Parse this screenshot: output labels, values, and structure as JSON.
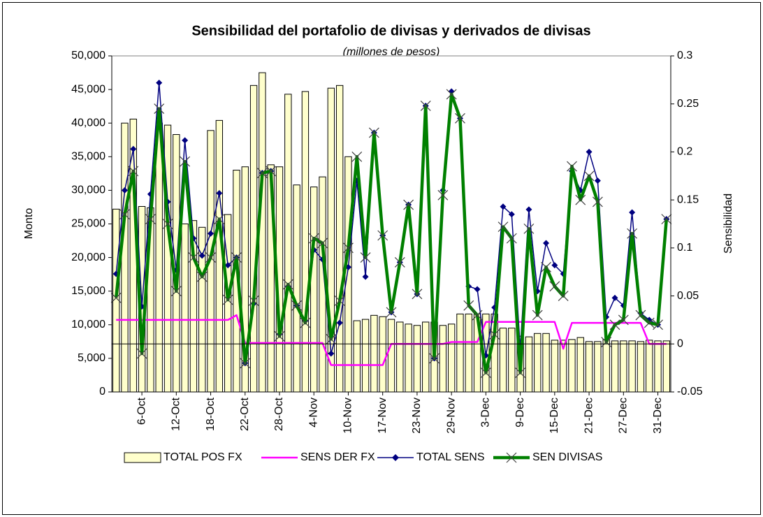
{
  "chart_data": {
    "type": "bar",
    "title": "Sensibilidad del portafolio de divisas y derivados de divisas",
    "subtitle": "(millones de pesos)",
    "y_label": "Monto",
    "y2_label": "Sensibilidad",
    "categories": [
      null,
      null,
      null,
      "6-Oct",
      null,
      null,
      null,
      "12-Oct",
      null,
      null,
      null,
      "18-Oct",
      null,
      null,
      null,
      "22-Oct",
      null,
      null,
      null,
      "28-Oct",
      null,
      null,
      null,
      "4-Nov",
      null,
      null,
      null,
      "10-Nov",
      null,
      null,
      null,
      "17-Nov",
      null,
      null,
      null,
      "23-Nov",
      null,
      null,
      null,
      "29-Nov",
      null,
      null,
      null,
      "3-Dec",
      null,
      null,
      null,
      "9-Dec",
      null,
      null,
      null,
      "15-Dec",
      null,
      null,
      null,
      "21-Dec",
      null,
      null,
      null,
      "27-Dec",
      null,
      null,
      null,
      "31-Dec",
      null
    ],
    "ylim": [
      0,
      50000
    ],
    "yticks": [
      0,
      {
        "value": 5000,
        "label": "5,000"
      },
      {
        "value": 10000,
        "label": "10,000"
      },
      {
        "value": 15000,
        "label": "15,000"
      },
      {
        "value": 20000,
        "label": "20,000"
      },
      {
        "value": 25000,
        "label": "25,000"
      },
      {
        "value": 30000,
        "label": "30,000"
      },
      {
        "value": 35000,
        "label": "35,000"
      },
      {
        "value": 40000,
        "label": "40,000"
      },
      {
        "value": 45000,
        "label": "45,000"
      },
      {
        "value": 50000,
        "label": "50,000"
      }
    ],
    "y2lim": [
      -0.05,
      0.3
    ],
    "y2ticks": [
      -0.05,
      0,
      0.05,
      0.1,
      0.15,
      0.2,
      0.25,
      0.3
    ],
    "legend": "bottom",
    "series": [
      {
        "name": "TOTAL POS FX",
        "type": "bar",
        "color": "#ffffcc",
        "values": [
          27200,
          40000,
          40600,
          27600,
          27400,
          40000,
          39700,
          38300,
          25000,
          25500,
          24500,
          38900,
          40400,
          26400,
          33000,
          33500,
          45600,
          47500,
          33800,
          33500,
          44300,
          30800,
          44700,
          30500,
          32000,
          45200,
          45600,
          35000,
          10600,
          10800,
          11400,
          11200,
          10800,
          10400,
          10100,
          9900,
          10400,
          10400,
          9900,
          10100,
          11600,
          11600,
          11600,
          11600,
          11600,
          9500,
          9500,
          8300,
          8200,
          8700,
          8700,
          7700,
          7700,
          7800,
          8100,
          7500,
          7500,
          7800,
          7600,
          7600,
          7600,
          7500,
          7700,
          7600,
          7600
        ]
      },
      {
        "name": "SENS DER FX",
        "type": "line",
        "axis": "y2",
        "color": "#ff00ff",
        "values": [
          0.025,
          0.025,
          0.025,
          0.025,
          0.025,
          0.025,
          0.025,
          0.025,
          0.025,
          0.025,
          0.025,
          0.025,
          0.025,
          0.025,
          0.03,
          0.001,
          0.001,
          0.001,
          0.001,
          0.001,
          0.001,
          0.001,
          0.001,
          0.001,
          0.001,
          -0.022,
          -0.022,
          -0.022,
          -0.022,
          -0.022,
          -0.022,
          -0.022,
          0,
          0,
          0,
          0,
          0,
          0,
          0,
          0.002,
          0.002,
          0.002,
          0.002,
          0.023,
          0.023,
          0.023,
          0.023,
          0.023,
          0.023,
          0.023,
          0.023,
          0.023,
          -0.005,
          0.022,
          0.022,
          0.022,
          0.022,
          0.022,
          0.022,
          0.022,
          0.022,
          0.022,
          0,
          0,
          0
        ]
      },
      {
        "name": "TOTAL SENS",
        "type": "line",
        "axis": "y2",
        "color": "#000080",
        "marker": "diamond",
        "values": [
          0.073,
          0.16,
          0.203,
          0.039,
          0.156,
          0.272,
          0.148,
          0.077,
          0.212,
          0.11,
          0.092,
          0.115,
          0.157,
          0.082,
          0.09,
          -0.02,
          0.042,
          0.178,
          0.18,
          0.01,
          0.06,
          0.04,
          0.024,
          0.098,
          0.088,
          -0.01,
          0.022,
          0.08,
          0.17,
          0.07,
          0.22,
          0.113,
          0.033,
          0.085,
          0.145,
          0.052,
          0.248,
          -0.015,
          0.16,
          0.263,
          0.235,
          0.06,
          0.057,
          -0.012,
          0.038,
          0.143,
          0.135,
          -0.005,
          0.14,
          0.055,
          0.105,
          0.082,
          0.073,
          0.18,
          0.16,
          0.2,
          0.17,
          0.028,
          0.048,
          0.04,
          0.137,
          0.032,
          0.025,
          0.02,
          0.13
        ]
      },
      {
        "name": "SEN DIVISAS",
        "type": "line",
        "axis": "y2",
        "color": "#008000",
        "marker": "x",
        "values": [
          0.048,
          0.135,
          0.18,
          -0.01,
          0.13,
          0.245,
          0.125,
          0.055,
          0.19,
          0.09,
          0.07,
          0.09,
          0.13,
          0.046,
          0.09,
          -0.02,
          0.045,
          0.178,
          0.18,
          0.008,
          0.062,
          0.04,
          0.022,
          0.11,
          0.105,
          0.005,
          0.045,
          0.1,
          0.195,
          0.09,
          0.22,
          0.113,
          0.033,
          0.085,
          0.145,
          0.052,
          0.248,
          -0.015,
          0.155,
          0.26,
          0.235,
          0.04,
          0.03,
          -0.03,
          0.01,
          0.122,
          0.11,
          -0.03,
          0.12,
          0.03,
          0.08,
          0.06,
          0.05,
          0.185,
          0.15,
          0.175,
          0.148,
          0.002,
          0.02,
          0.025,
          0.115,
          0.03,
          0.022,
          0.02,
          0.13
        ]
      }
    ]
  }
}
